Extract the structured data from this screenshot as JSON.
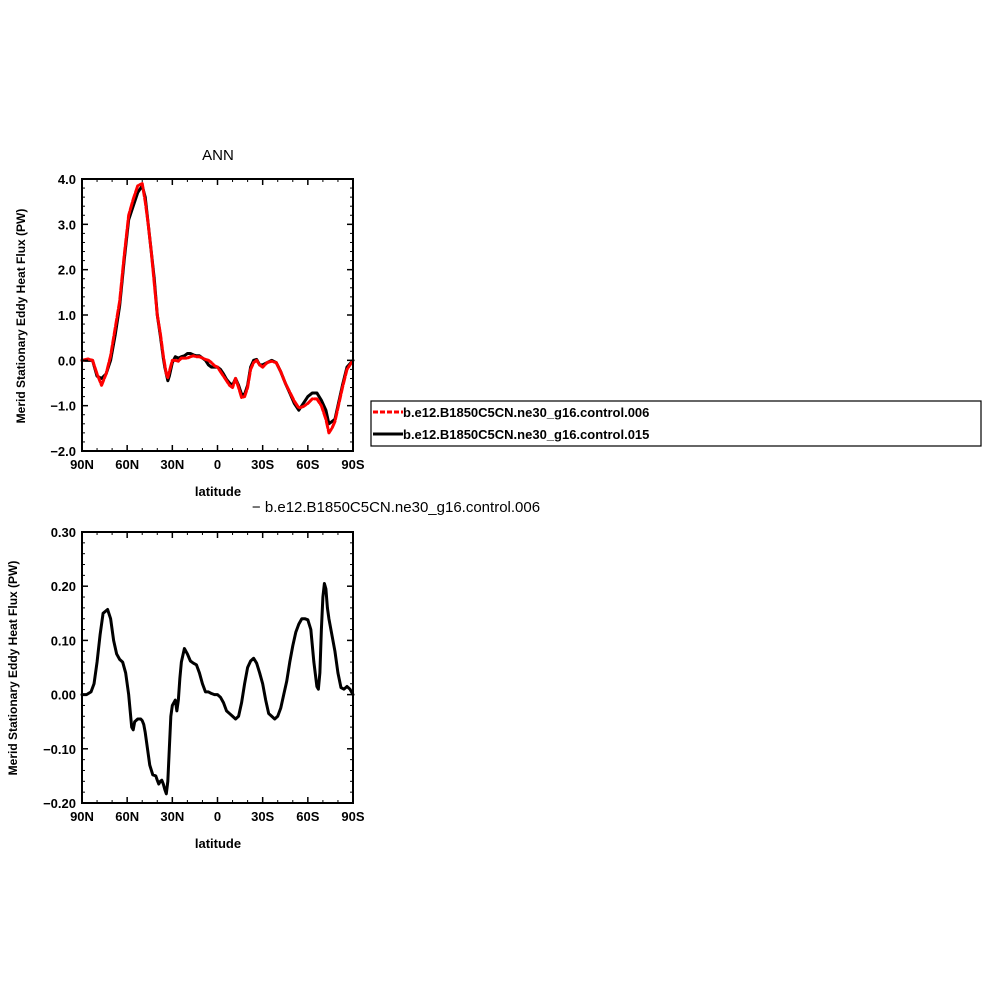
{
  "chart_data": [
    {
      "type": "line",
      "title": "ANN",
      "xlabel": "latitude",
      "ylabel": "Merid Stationary Eddy Heat Flux (PW)",
      "xlim": [
        90,
        -90
      ],
      "ylim": [
        -2.0,
        4.0
      ],
      "xtick_values": [
        90,
        60,
        30,
        0,
        -30,
        -60,
        -90
      ],
      "xtick_labels": [
        "90N",
        "60N",
        "30N",
        "0",
        "30S",
        "60S",
        "90S"
      ],
      "ytick_values": [
        -2.0,
        -1.0,
        0.0,
        1.0,
        2.0,
        3.0,
        4.0
      ],
      "ytick_labels": [
        "−2.0",
        "−1.0",
        "0.0",
        "1.0",
        "2.0",
        "3.0",
        "4.0"
      ],
      "legend_position": "right",
      "series": [
        {
          "name": "b.e12.B1850C5CN.ne30_g16.control.006",
          "color": "#ff0000",
          "dashed": true,
          "x": [
            90,
            86,
            83,
            80,
            77,
            74,
            71,
            68,
            65,
            62,
            59,
            56,
            53,
            50,
            48,
            46,
            44,
            42,
            40,
            38,
            36,
            35,
            34,
            33,
            32,
            30,
            28,
            26,
            24,
            22,
            20,
            18,
            16,
            14,
            12,
            10,
            8,
            6,
            4,
            2,
            0,
            -2,
            -4,
            -6,
            -8,
            -10,
            -12,
            -14,
            -16,
            -18,
            -20,
            -22,
            -24,
            -26,
            -28,
            -30,
            -33,
            -36,
            -39,
            -42,
            -45,
            -48,
            -51,
            -54,
            -57,
            -60,
            -63,
            -66,
            -69,
            -72,
            -74,
            -76,
            -78,
            -80,
            -83,
            -86,
            -90
          ],
          "y": [
            0.0,
            0.03,
            0.0,
            -0.3,
            -0.55,
            -0.3,
            0.1,
            0.7,
            1.3,
            2.3,
            3.2,
            3.55,
            3.85,
            3.9,
            3.5,
            3.0,
            2.4,
            1.7,
            1.0,
            0.6,
            0.1,
            -0.1,
            -0.3,
            -0.38,
            -0.25,
            0.0,
            0.0,
            -0.02,
            0.05,
            0.05,
            0.05,
            0.08,
            0.1,
            0.08,
            0.08,
            0.05,
            0.02,
            0.0,
            -0.05,
            -0.12,
            -0.15,
            -0.25,
            -0.35,
            -0.45,
            -0.55,
            -0.6,
            -0.4,
            -0.6,
            -0.82,
            -0.8,
            -0.6,
            -0.2,
            -0.05,
            0.0,
            -0.1,
            -0.15,
            -0.05,
            -0.02,
            -0.05,
            -0.25,
            -0.5,
            -0.7,
            -0.9,
            -1.05,
            -1.02,
            -0.95,
            -0.85,
            -0.85,
            -1.0,
            -1.3,
            -1.6,
            -1.5,
            -1.35,
            -1.05,
            -0.6,
            -0.2,
            0.0
          ]
        },
        {
          "name": "b.e12.B1850C5CN.ne30_g16.control.015",
          "color": "#000000",
          "dashed": false,
          "x": [
            90,
            86,
            83,
            80,
            77,
            74,
            71,
            68,
            65,
            62,
            59,
            56,
            53,
            50,
            48,
            46,
            44,
            42,
            40,
            38,
            36,
            35,
            34,
            33,
            32,
            30,
            28,
            26,
            24,
            22,
            20,
            18,
            16,
            14,
            12,
            10,
            8,
            6,
            4,
            2,
            0,
            -2,
            -4,
            -6,
            -8,
            -10,
            -12,
            -14,
            -16,
            -18,
            -20,
            -22,
            -24,
            -26,
            -28,
            -30,
            -33,
            -36,
            -39,
            -42,
            -45,
            -48,
            -51,
            -54,
            -57,
            -60,
            -63,
            -66,
            -69,
            -72,
            -74,
            -76,
            -78,
            -80,
            -83,
            -86,
            -90
          ],
          "y": [
            0.0,
            0.0,
            0.0,
            -0.35,
            -0.4,
            -0.3,
            0.0,
            0.55,
            1.2,
            2.2,
            3.1,
            3.4,
            3.7,
            3.85,
            3.6,
            3.0,
            2.4,
            1.8,
            1.0,
            0.55,
            0.05,
            -0.15,
            -0.3,
            -0.45,
            -0.35,
            -0.05,
            0.08,
            0.05,
            0.08,
            0.1,
            0.15,
            0.15,
            0.12,
            0.1,
            0.1,
            0.05,
            0.0,
            -0.1,
            -0.15,
            -0.15,
            -0.15,
            -0.2,
            -0.3,
            -0.42,
            -0.5,
            -0.55,
            -0.4,
            -0.55,
            -0.75,
            -0.75,
            -0.55,
            -0.15,
            0.0,
            0.02,
            -0.1,
            -0.1,
            -0.05,
            0.0,
            -0.05,
            -0.25,
            -0.5,
            -0.72,
            -0.95,
            -1.1,
            -0.95,
            -0.8,
            -0.72,
            -0.72,
            -0.88,
            -1.1,
            -1.4,
            -1.35,
            -1.3,
            -1.0,
            -0.55,
            -0.15,
            0.0
          ]
        }
      ]
    },
    {
      "type": "line",
      "title": "− b.e12.B1850C5CN.ne30_g16.control.006",
      "xlabel": "latitude",
      "ylabel": "Merid Stationary Eddy Heat Flux (PW)",
      "xlim": [
        90,
        -90
      ],
      "ylim": [
        -0.2,
        0.3
      ],
      "xtick_values": [
        90,
        60,
        30,
        0,
        -30,
        -60,
        -90
      ],
      "xtick_labels": [
        "90N",
        "60N",
        "30N",
        "0",
        "30S",
        "60S",
        "90S"
      ],
      "ytick_values": [
        -0.2,
        -0.1,
        0.0,
        0.1,
        0.2,
        0.3
      ],
      "ytick_labels": [
        "−0.20",
        "−0.10",
        "0.00",
        "0.10",
        "0.20",
        "0.30"
      ],
      "series": [
        {
          "color": "#000000",
          "dashed": false,
          "x": [
            90,
            87,
            84,
            82,
            80,
            78,
            76,
            73,
            71,
            69,
            67,
            65,
            63,
            61,
            59,
            58,
            57,
            56,
            55,
            53,
            51,
            50,
            49,
            48,
            47,
            46,
            45,
            43,
            41,
            40,
            39,
            38,
            37,
            36,
            35,
            34,
            33,
            32,
            31,
            30,
            29,
            28,
            27,
            26,
            25,
            24,
            22,
            20,
            18,
            16,
            14,
            12,
            10,
            8,
            6,
            4,
            2,
            0,
            -2,
            -4,
            -6,
            -8,
            -10,
            -12,
            -14,
            -16,
            -18,
            -20,
            -22,
            -24,
            -26,
            -28,
            -30,
            -32,
            -34,
            -36,
            -38,
            -40,
            -42,
            -44,
            -46,
            -48,
            -50,
            -52,
            -54,
            -56,
            -58,
            -60,
            -62,
            -64,
            -66,
            -67,
            -68,
            -69,
            -70,
            -71,
            -72,
            -73,
            -74,
            -75,
            -76,
            -78,
            -80,
            -82,
            -84,
            -86,
            -88,
            -90
          ],
          "y": [
            0.0,
            0.0,
            0.005,
            0.02,
            0.06,
            0.11,
            0.15,
            0.157,
            0.14,
            0.1,
            0.075,
            0.065,
            0.06,
            0.04,
            0.0,
            -0.03,
            -0.06,
            -0.065,
            -0.05,
            -0.045,
            -0.045,
            -0.048,
            -0.055,
            -0.07,
            -0.09,
            -0.11,
            -0.13,
            -0.148,
            -0.15,
            -0.158,
            -0.165,
            -0.16,
            -0.158,
            -0.165,
            -0.175,
            -0.183,
            -0.16,
            -0.1,
            -0.04,
            -0.02,
            -0.015,
            -0.01,
            -0.03,
            -0.01,
            0.03,
            0.06,
            0.085,
            0.075,
            0.062,
            0.058,
            0.055,
            0.04,
            0.02,
            0.005,
            0.005,
            0.002,
            0.0,
            0.0,
            -0.005,
            -0.015,
            -0.03,
            -0.035,
            -0.04,
            -0.045,
            -0.04,
            -0.015,
            0.02,
            0.05,
            0.062,
            0.067,
            0.058,
            0.04,
            0.02,
            -0.01,
            -0.035,
            -0.04,
            -0.045,
            -0.04,
            -0.025,
            0.0,
            0.025,
            0.06,
            0.09,
            0.115,
            0.13,
            0.14,
            0.14,
            0.138,
            0.12,
            0.06,
            0.015,
            0.01,
            0.04,
            0.12,
            0.18,
            0.205,
            0.195,
            0.16,
            0.14,
            0.125,
            0.11,
            0.08,
            0.04,
            0.013,
            0.01,
            0.015,
            0.01,
            0.0
          ]
        }
      ]
    }
  ]
}
